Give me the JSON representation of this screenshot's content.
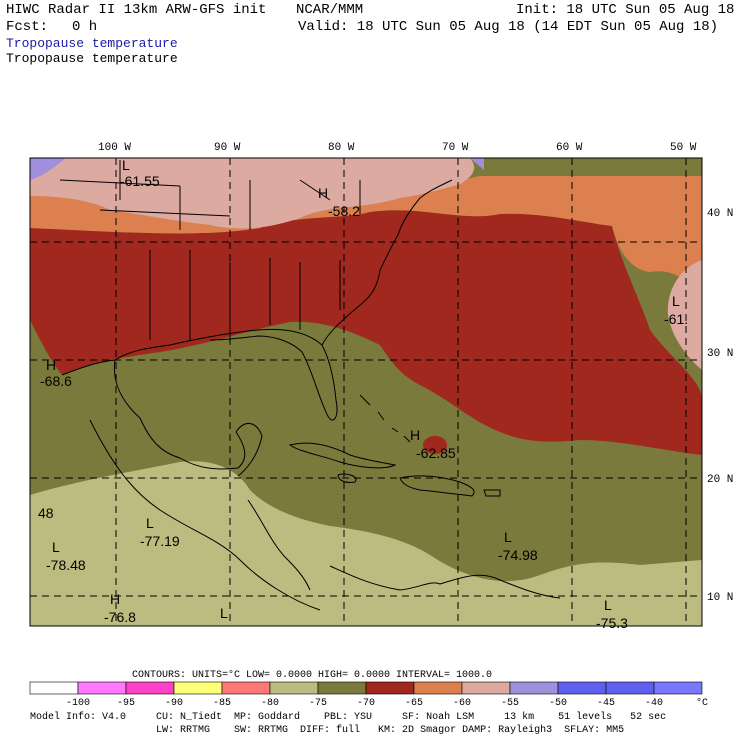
{
  "header": {
    "model_line": "HIWC Radar II 13km ARW-GFS init",
    "org": "NCAR/MMM",
    "init": "Init: 18 UTC Sun 05 Aug 18",
    "fcst_label": "Fcst:",
    "fcst_value": "0 h",
    "valid": "Valid: 18 UTC Sun 05 Aug 18 (14 EDT Sun 05 Aug 18)",
    "field_title_1": "Tropopause temperature",
    "field_title_2": "Tropopause temperature"
  },
  "map": {
    "lon_labels": [
      "100 W",
      "90 W",
      "80 W",
      "70 W",
      "60 W",
      "50 W"
    ],
    "lat_labels": [
      "40 N",
      "30 N",
      "20 N",
      "10 N"
    ],
    "annotations": [
      {
        "kind": "L",
        "value": "-61.55"
      },
      {
        "kind": "H",
        "value": "-58.2"
      },
      {
        "kind": "L",
        "value": "-61."
      },
      {
        "kind": "H",
        "value": "-68.6"
      },
      {
        "kind": "H",
        "value": "-62.85"
      },
      {
        "kind": "L",
        "value": "-77.19"
      },
      {
        "kind": "L",
        "value": "-78.48"
      },
      {
        "kind": "",
        "value": "48"
      },
      {
        "kind": "L",
        "value": "-74.98"
      },
      {
        "kind": "H",
        "value": "-76.8"
      },
      {
        "kind": "L",
        "value": "-75.3"
      },
      {
        "kind": "L",
        "value": ""
      }
    ]
  },
  "contours": {
    "line": "CONTOURS:  UNITS=°C  LOW=  0.0000       HIGH=  0.0000       INTERVAL=   1000.0"
  },
  "colorbar": {
    "colors": [
      "#ffffff",
      "#ff78ff",
      "#ff40c8",
      "#ffff78",
      "#ff7878",
      "#bcbc80",
      "#7a7a3c",
      "#a0281e",
      "#dc8050",
      "#dcaaa0",
      "#a090dc",
      "#6060f0",
      "#6060f0",
      "#7878ff"
    ],
    "ticks": [
      "-100",
      "-95",
      "-90",
      "-85",
      "-80",
      "-75",
      "-70",
      "-65",
      "-60",
      "-55",
      "-50",
      "-45",
      "-40"
    ],
    "unit": "°C"
  },
  "footer": {
    "line1": "Model Info: V4.0     CU: N_Tiedt  MP: Goddard    PBL: YSU     SF: Noah LSM     13 km    51 levels   52 sec",
    "line2": "                     LW: RRTMG    SW: RRTMG  DIFF: full   KM: 2D Smagor DAMP: Rayleigh3  SFLAY: MM5"
  },
  "colors": {
    "tan": "#bcbc80",
    "olive": "#7a7a3c",
    "dark_red": "#a0281e",
    "orange": "#dc8050",
    "pink": "#dcaaa0",
    "lavender": "#a090dc"
  }
}
